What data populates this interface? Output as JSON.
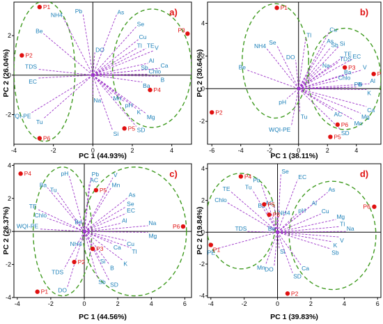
{
  "chart_data": [
    {
      "type": "scatter",
      "panel_label": "a)",
      "xlabel": "PC 1 (44.93%)",
      "ylabel": "PC 2 (26.04%)",
      "xlim": [
        -4,
        5
      ],
      "ylim": [
        -3.5,
        3.7
      ],
      "xticks": [
        -4,
        -2,
        0,
        2,
        4
      ],
      "yticks": [
        -2,
        0,
        2
      ],
      "samples": [
        {
          "name": "P1",
          "x": -2.7,
          "y": 3.45
        },
        {
          "name": "P2",
          "x": -3.6,
          "y": 1.0
        },
        {
          "name": "P3",
          "x": 4.8,
          "y": 2.1
        },
        {
          "name": "P4",
          "x": 2.9,
          "y": -0.75
        },
        {
          "name": "P5",
          "x": 1.6,
          "y": -2.7
        },
        {
          "name": "P6",
          "x": -2.7,
          "y": -3.2
        }
      ],
      "loadings": [
        {
          "name": "Be",
          "x": -2.5,
          "y": 2.1
        },
        {
          "name": "NH4",
          "x": -1.5,
          "y": 2.9
        },
        {
          "name": "Pb",
          "x": -0.5,
          "y": 3.1
        },
        {
          "name": "As",
          "x": 1.2,
          "y": 3.05
        },
        {
          "name": "Se",
          "x": 2.2,
          "y": 2.45
        },
        {
          "name": "Cu",
          "x": 2.3,
          "y": 1.8
        },
        {
          "name": "Tl",
          "x": 2.2,
          "y": 1.35
        },
        {
          "name": "TE",
          "x": 2.7,
          "y": 1.35
        },
        {
          "name": "V",
          "x": 3.1,
          "y": 1.25
        },
        {
          "name": "DO",
          "x": 0.1,
          "y": 1.15
        },
        {
          "name": "Ca",
          "x": 3.4,
          "y": 0.35
        },
        {
          "name": "Al",
          "x": 2.8,
          "y": 0.6
        },
        {
          "name": "Sb",
          "x": 2.4,
          "y": 0.25
        },
        {
          "name": "Chlo",
          "x": 2.8,
          "y": 0.05
        },
        {
          "name": "B",
          "x": 3.4,
          "y": -0.05
        },
        {
          "name": "Ba",
          "x": 2.5,
          "y": -0.35
        },
        {
          "name": "EC",
          "x": -2.8,
          "y": -0.15
        },
        {
          "name": "TDS",
          "x": -2.8,
          "y": 0.3
        },
        {
          "name": "Na",
          "x": 0.0,
          "y": -1.1
        },
        {
          "name": "Mn",
          "x": 1.0,
          "y": -1.0
        },
        {
          "name": "pH",
          "x": 1.6,
          "y": -1.35
        },
        {
          "name": "K",
          "x": 2.2,
          "y": -1.7
        },
        {
          "name": "Mg",
          "x": 2.7,
          "y": -1.95
        },
        {
          "name": "SD",
          "x": 2.2,
          "y": -2.6
        },
        {
          "name": "Si",
          "x": 1.0,
          "y": -2.8
        },
        {
          "name": "Tu",
          "x": -2.5,
          "y": -2.2
        },
        {
          "name": "WQI-PE",
          "x": -3.1,
          "y": -1.9
        }
      ]
    },
    {
      "type": "scatter",
      "panel_label": "b)",
      "xlabel": "PC 1 (38.11%)",
      "ylabel": "PC 2 (30.64%)",
      "xlim": [
        -6.3,
        5.7
      ],
      "ylim": [
        -3.4,
        5.3
      ],
      "xticks": [
        -6,
        -4,
        -2,
        0,
        2,
        4
      ],
      "yticks": [
        -2,
        0,
        2,
        4
      ],
      "samples": [
        {
          "name": "P1",
          "x": -1.5,
          "y": 4.95
        },
        {
          "name": "P2",
          "x": -6.0,
          "y": -1.45
        },
        {
          "name": "P3",
          "x": 3.2,
          "y": 1.3
        },
        {
          "name": "P4",
          "x": 5.2,
          "y": 0.9
        },
        {
          "name": "P5",
          "x": 2.2,
          "y": -2.95
        },
        {
          "name": "P6",
          "x": 2.7,
          "y": -2.2
        }
      ],
      "loadings": [
        {
          "name": "Se",
          "x": -1.5,
          "y": 2.65
        },
        {
          "name": "NH4",
          "x": -2.2,
          "y": 2.45
        },
        {
          "name": "Be",
          "x": -3.6,
          "y": 1.15
        },
        {
          "name": "Tl",
          "x": 0.5,
          "y": 3.1
        },
        {
          "name": "Cu",
          "x": 2.1,
          "y": 3.45
        },
        {
          "name": "As",
          "x": 1.9,
          "y": 2.75
        },
        {
          "name": "Sb",
          "x": 2.2,
          "y": 2.5
        },
        {
          "name": "Si",
          "x": 2.8,
          "y": 2.6
        },
        {
          "name": "DO",
          "x": -0.2,
          "y": 1.75
        },
        {
          "name": "TE",
          "x": 3.1,
          "y": 1.95
        },
        {
          "name": "TDS",
          "x": 2.8,
          "y": 1.65
        },
        {
          "name": "EC",
          "x": 3.7,
          "y": 1.8
        },
        {
          "name": "V",
          "x": 4.4,
          "y": 1.15
        },
        {
          "name": "Na",
          "x": 1.6,
          "y": 1.25
        },
        {
          "name": "Chlo",
          "x": 2.7,
          "y": 0.5
        },
        {
          "name": "Pb",
          "x": 3.8,
          "y": 0.1
        },
        {
          "name": "Ba",
          "x": 3.1,
          "y": 0.85
        },
        {
          "name": "Al",
          "x": 4.9,
          "y": 0.3
        },
        {
          "name": "K",
          "x": 4.7,
          "y": -0.05
        },
        {
          "name": "B",
          "x": 4.1,
          "y": 0.1
        },
        {
          "name": "pH",
          "x": -0.8,
          "y": -0.6
        },
        {
          "name": "Tu",
          "x": 0.1,
          "y": -1.5
        },
        {
          "name": "WQI-PE",
          "x": -0.5,
          "y": -2.3
        },
        {
          "name": "Ca",
          "x": 4.7,
          "y": -1.1
        },
        {
          "name": "AC",
          "x": 2.4,
          "y": -1.35
        },
        {
          "name": "Mg",
          "x": 4.3,
          "y": -1.5
        },
        {
          "name": "Mn",
          "x": 3.8,
          "y": -1.9
        },
        {
          "name": "SD",
          "x": 2.9,
          "y": -2.5
        }
      ]
    },
    {
      "type": "scatter",
      "panel_label": "c)",
      "xlabel": "PC 1 (44.56%)",
      "ylabel": "PC 2 (26.37%)",
      "xlim": [
        -4.2,
        6.4
      ],
      "ylim": [
        -4.0,
        4.1
      ],
      "xticks": [
        -4,
        -2,
        0,
        2,
        4,
        6
      ],
      "yticks": [
        -4,
        -2,
        0,
        2,
        4
      ],
      "samples": [
        {
          "name": "P1",
          "x": -2.8,
          "y": -3.65
        },
        {
          "name": "P2",
          "x": -0.6,
          "y": -1.85
        },
        {
          "name": "P3",
          "x": 0.5,
          "y": -1.05
        },
        {
          "name": "P4",
          "x": -3.8,
          "y": 3.5
        },
        {
          "name": "P5",
          "x": 0.7,
          "y": 2.5
        },
        {
          "name": "P6",
          "x": 5.9,
          "y": 0.3
        }
      ],
      "loadings": [
        {
          "name": "pH",
          "x": -0.9,
          "y": 3.35
        },
        {
          "name": "Pb",
          "x": 0.4,
          "y": 3.3
        },
        {
          "name": "V",
          "x": 1.7,
          "y": 3.25
        },
        {
          "name": "AC",
          "x": 0.3,
          "y": 2.95
        },
        {
          "name": "Mn",
          "x": 1.6,
          "y": 2.65
        },
        {
          "name": "Ba",
          "x": -2.2,
          "y": 2.65
        },
        {
          "name": "Tu",
          "x": -1.6,
          "y": 2.35
        },
        {
          "name": "As",
          "x": 2.6,
          "y": 2.05
        },
        {
          "name": "Se",
          "x": 2.5,
          "y": 1.5
        },
        {
          "name": "EC",
          "x": 2.5,
          "y": 1.1
        },
        {
          "name": "TE",
          "x": -2.8,
          "y": 1.35
        },
        {
          "name": "Chlo",
          "x": -2.2,
          "y": 0.8
        },
        {
          "name": "WQI-PE",
          "x": -2.7,
          "y": 0.15
        },
        {
          "name": "Be",
          "x": -0.1,
          "y": 0.4
        },
        {
          "name": "Al",
          "x": 2.2,
          "y": 0.5
        },
        {
          "name": "Na",
          "x": 3.8,
          "y": 0.35
        },
        {
          "name": "Mg",
          "x": 3.8,
          "y": -0.05
        },
        {
          "name": "Cu",
          "x": 2.5,
          "y": -0.55
        },
        {
          "name": "Ca",
          "x": 1.7,
          "y": -0.75
        },
        {
          "name": "Tl",
          "x": 2.8,
          "y": -1.0
        },
        {
          "name": "NH4",
          "x": -0.1,
          "y": -0.55
        },
        {
          "name": "Si",
          "x": 0.9,
          "y": -1.6
        },
        {
          "name": "K",
          "x": 2.3,
          "y": -1.75
        },
        {
          "name": "B",
          "x": 1.5,
          "y": -2.0
        },
        {
          "name": "TDS",
          "x": -1.2,
          "y": -2.25
        },
        {
          "name": "Sb",
          "x": 0.8,
          "y": -2.85
        },
        {
          "name": "SD",
          "x": 1.5,
          "y": -3.0
        },
        {
          "name": "DO",
          "x": -1.0,
          "y": -3.35
        }
      ]
    },
    {
      "type": "scatter",
      "panel_label": "d)",
      "xlabel": "PC 1 (39.83%)",
      "ylabel": "PC 2 (19.84%)",
      "xlim": [
        -4.2,
        6.2
      ],
      "ylim": [
        -4.1,
        4.3
      ],
      "xticks": [
        -4,
        -2,
        0,
        2,
        4,
        6
      ],
      "yticks": [
        -4,
        -2,
        0,
        2,
        4
      ],
      "samples": [
        {
          "name": "P1",
          "x": -4.0,
          "y": -0.8
        },
        {
          "name": "P2",
          "x": 0.6,
          "y": -3.85
        },
        {
          "name": "P3",
          "x": -0.5,
          "y": 1.1
        },
        {
          "name": "P4",
          "x": -2.2,
          "y": 3.5
        },
        {
          "name": "P5",
          "x": -0.8,
          "y": 1.75
        },
        {
          "name": "P6",
          "x": 5.8,
          "y": 1.6
        }
      ],
      "loadings": [
        {
          "name": "Se",
          "x": 0.2,
          "y": 3.65
        },
        {
          "name": "EC",
          "x": 1.2,
          "y": 3.3
        },
        {
          "name": "Pb",
          "x": -1.0,
          "y": 3.1
        },
        {
          "name": "Tu",
          "x": -1.5,
          "y": 2.65
        },
        {
          "name": "TE",
          "x": -2.8,
          "y": 2.55
        },
        {
          "name": "As",
          "x": 3.0,
          "y": 2.5
        },
        {
          "name": "Chlo",
          "x": -3.0,
          "y": 1.85
        },
        {
          "name": "AC",
          "x": -0.2,
          "y": 1.65
        },
        {
          "name": "Ba",
          "x": -0.7,
          "y": 1.5
        },
        {
          "name": "Al",
          "x": 2.0,
          "y": 1.65
        },
        {
          "name": "pH",
          "x": 1.2,
          "y": 1.2
        },
        {
          "name": "Cu",
          "x": 2.6,
          "y": 1.15
        },
        {
          "name": "NH4",
          "x": 0.0,
          "y": 1.05
        },
        {
          "name": "Mg",
          "x": 3.5,
          "y": 0.8
        },
        {
          "name": "Tl",
          "x": 3.7,
          "y": 0.35
        },
        {
          "name": "TDS",
          "x": -1.8,
          "y": 0.05
        },
        {
          "name": "Be",
          "x": -0.1,
          "y": 0.05
        },
        {
          "name": "Na",
          "x": 4.1,
          "y": 0.05
        },
        {
          "name": "V",
          "x": 3.7,
          "y": -0.3
        },
        {
          "name": "K",
          "x": 3.3,
          "y": -0.6
        },
        {
          "name": "Sb",
          "x": 3.2,
          "y": -1.05
        },
        {
          "name": "WQI-PE",
          "x": -3.7,
          "y": -1.05
        },
        {
          "name": "Si",
          "x": 0.1,
          "y": -1.0
        },
        {
          "name": "Mn",
          "x": -0.7,
          "y": -2.0
        },
        {
          "name": "DO",
          "x": -0.2,
          "y": -2.1
        },
        {
          "name": "Ca",
          "x": 1.4,
          "y": -2.05
        },
        {
          "name": "SD",
          "x": 0.9,
          "y": -2.55
        }
      ]
    }
  ]
}
